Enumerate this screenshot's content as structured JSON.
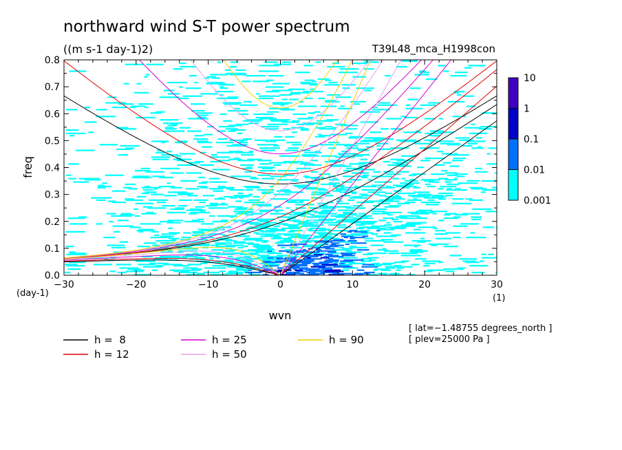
{
  "chart_data": {
    "type": "heatmap",
    "title": "northward wind S-T power spectrum",
    "subtitle": "((m s-1 day-1)2)",
    "run_label": "T39L48_mca_H1998con",
    "xlabel": "wvn",
    "ylabel": "freq",
    "x_unit": "(1)",
    "y_unit": "(day-1)",
    "xlim": [
      -30,
      30
    ],
    "ylim": [
      0,
      0.8
    ],
    "x_ticks": [
      -30,
      -20,
      -10,
      0,
      10,
      20,
      30
    ],
    "y_ticks": [
      0.0,
      0.1,
      0.2,
      0.3,
      0.4,
      0.5,
      0.6,
      0.7,
      0.8
    ],
    "x_tick_labels": [
      "−30",
      "−20",
      "−10",
      "0",
      "10",
      "20",
      "30"
    ],
    "y_tick_labels": [
      "0.0",
      "0.1",
      "0.2",
      "0.3",
      "0.4",
      "0.5",
      "0.6",
      "0.7",
      "0.8"
    ],
    "colorbar": {
      "levels": [
        "0.001",
        "0.01",
        "0.1",
        "1",
        "10"
      ],
      "colors": [
        "#00ffff",
        "#0070ff",
        "#0000c8",
        "#4000c0"
      ]
    },
    "dispersion_curves": [
      {
        "label": "h =  8",
        "h": 8,
        "color": "#000000"
      },
      {
        "label": "h = 12",
        "h": 12,
        "color": "#e00000"
      },
      {
        "label": "h = 25",
        "h": 25,
        "color": "#d000d0"
      },
      {
        "label": "h = 50",
        "h": 50,
        "color": "#e8a0e8"
      },
      {
        "label": "h = 90",
        "h": 90,
        "color": "#f0d000"
      }
    ],
    "annotations": [
      "[ lat=−1.48755 degrees_north ]",
      "[ plev=25000 Pa ]"
    ]
  }
}
